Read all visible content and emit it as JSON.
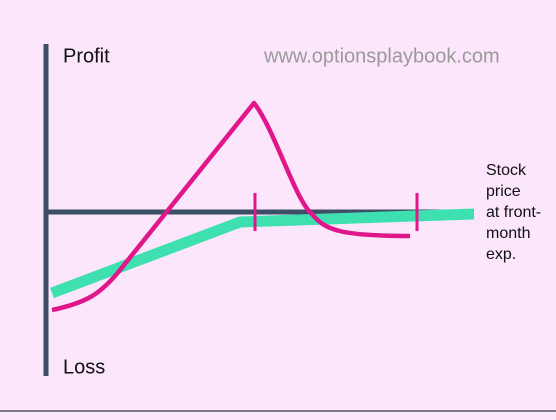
{
  "diagram": {
    "profit_label": "Profit",
    "loss_label": "Loss",
    "watermark": "www.optionsplaybook.com",
    "x_axis_label": [
      "Stock",
      "price",
      "at front-",
      "month",
      "exp."
    ]
  }
}
